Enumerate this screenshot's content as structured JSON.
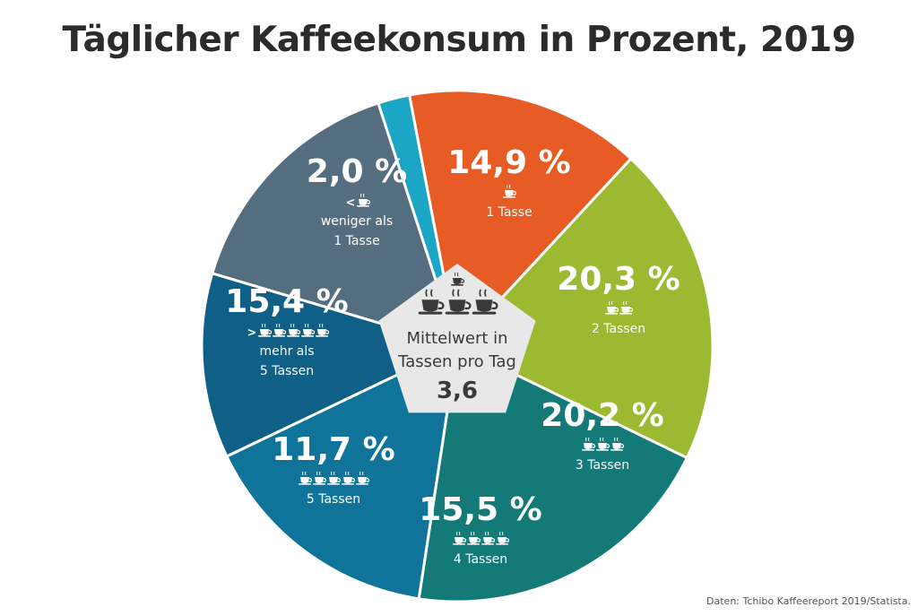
{
  "title": "Täglicher Kaffeekonsum in Prozent, 2019",
  "source": "Daten: Tchibo Kaffeereport 2019/Statista.",
  "center": {
    "label_line1": "Mittelwert in",
    "label_line2": "Tassen pro Tag",
    "value": "3,6"
  },
  "chart_data": {
    "type": "pie",
    "title": "Täglicher Kaffeekonsum in Prozent, 2019",
    "unit": "%",
    "mean_cups_per_day": 3.6,
    "slices": [
      {
        "value": 14.9,
        "label": "14,9 %",
        "cups": 1,
        "sign": "",
        "lines": [
          "1 Tasse"
        ],
        "color": "#e65c24"
      },
      {
        "value": 20.3,
        "label": "20,3 %",
        "cups": 2,
        "sign": "",
        "lines": [
          "2 Tassen"
        ],
        "color": "#9cba31"
      },
      {
        "value": 20.2,
        "label": "20,2 %",
        "cups": 3,
        "sign": "",
        "lines": [
          "3 Tassen"
        ],
        "color": "#137a78"
      },
      {
        "value": 15.5,
        "label": "15,5 %",
        "cups": 4,
        "sign": "",
        "lines": [
          "4 Tassen"
        ],
        "color": "#10749a"
      },
      {
        "value": 11.7,
        "label": "11,7 %",
        "cups": 5,
        "sign": "",
        "lines": [
          "5 Tassen"
        ],
        "color": "#0f5f86"
      },
      {
        "value": 15.4,
        "label": "15,4 %",
        "cups": 5,
        "sign": ">",
        "lines": [
          "mehr als",
          "5 Tassen"
        ],
        "color": "#556e7f"
      },
      {
        "value": 2.0,
        "label": "2,0 %",
        "cups": 1,
        "sign": "<",
        "lines": [
          "weniger als",
          "1 Tasse"
        ],
        "color": "#1aa6c4"
      }
    ]
  }
}
